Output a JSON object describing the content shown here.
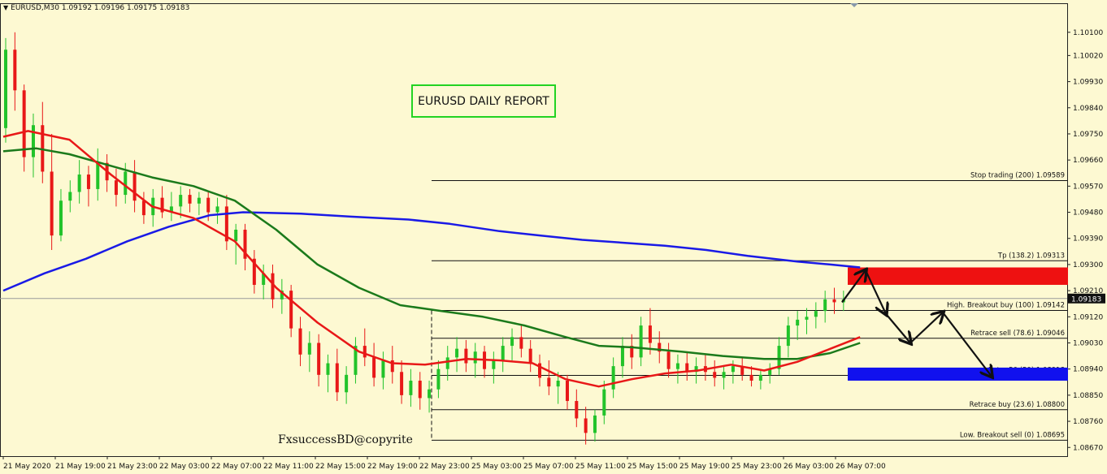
{
  "header": {
    "symbol_info": "EURUSD,M30  1.09192 1.09196 1.09175 1.09183"
  },
  "title_box": "EURUSD DAILY REPORT",
  "watermark": "FxsuccessBD@copyrite",
  "colors": {
    "background": "#fdf9d2",
    "bull_candle": "#22c32a",
    "bear_candle": "#e81818",
    "ma_red": "#e81818",
    "ma_green": "#1b7a1b",
    "ma_blue": "#1a1ae6",
    "zone_red": "#ee1111",
    "zone_blue": "#1111ee",
    "price_tag": "#111111"
  },
  "chart_data": {
    "type": "candlestick",
    "ylim": [
      1.0864,
      1.102
    ],
    "xlim": [
      0,
      1022
    ],
    "y_tick_labels": [
      "1.10100",
      "1.10020",
      "1.09930",
      "1.09840",
      "1.09750",
      "1.09660",
      "1.09570",
      "1.09480",
      "1.09390",
      "1.09300",
      "1.09210",
      "1.09120",
      "1.09030",
      "1.08940",
      "1.08850",
      "1.08760",
      "1.08670"
    ],
    "x_tick_labels": [
      "21 May 2020",
      "21 May 19:00",
      "21 May 23:00",
      "22 May 03:00",
      "22 May 07:00",
      "22 May 11:00",
      "22 May 15:00",
      "22 May 19:00",
      "22 May 23:00",
      "25 May 03:00",
      "25 May 07:00",
      "25 May 11:00",
      "25 May 15:00",
      "25 May 19:00",
      "25 May 23:00",
      "26 May 03:00",
      "26 May 07:00"
    ],
    "current_price": "1.09183",
    "fib_levels": [
      {
        "label": "Stop trading (200)",
        "value": "1.09589"
      },
      {
        "label": "Tp (138.2)",
        "value": "1.09313"
      },
      {
        "label": "High. Breakout buy (100)",
        "value": "1.09142"
      },
      {
        "label": "Retrace sell (78.6)",
        "value": "1.09046"
      },
      {
        "label": "Entry 50 (50)",
        "value": "1.08918"
      },
      {
        "label": "Retrace buy (23.6)",
        "value": "1.08800"
      },
      {
        "label": "Low. Breakout sell (0)",
        "value": "1.08695"
      }
    ],
    "zones": [
      {
        "name": "sell-zone",
        "color": "red",
        "from": 1.0923,
        "to": 1.0929
      },
      {
        "name": "buy-zone",
        "color": "blue",
        "from": 1.089,
        "to": 1.08945
      }
    ],
    "forecast_path": [
      [
        1036,
        1.0917
      ],
      [
        1065,
        1.0928
      ],
      [
        1090,
        1.0913
      ],
      [
        1120,
        1.0903
      ],
      [
        1160,
        1.09135
      ],
      [
        1220,
        1.08915
      ]
    ],
    "ma_red": [
      [
        0,
        1.0974
      ],
      [
        30,
        1.0976
      ],
      [
        80,
        1.0973
      ],
      [
        130,
        1.0961
      ],
      [
        180,
        1.095
      ],
      [
        230,
        1.0946
      ],
      [
        280,
        1.0938
      ],
      [
        330,
        1.0922
      ],
      [
        380,
        1.091
      ],
      [
        430,
        1.09
      ],
      [
        470,
        1.0896
      ],
      [
        510,
        1.08955
      ],
      [
        560,
        1.08975
      ],
      [
        600,
        1.0897
      ],
      [
        640,
        1.0896
      ],
      [
        680,
        1.08905
      ],
      [
        720,
        1.0888
      ],
      [
        760,
        1.08905
      ],
      [
        800,
        1.08925
      ],
      [
        840,
        1.08935
      ],
      [
        880,
        1.08955
      ],
      [
        920,
        1.08935
      ],
      [
        960,
        1.08965
      ],
      [
        1000,
        1.0901
      ],
      [
        1036,
        1.0905
      ]
    ],
    "ma_green": [
      [
        0,
        1.0969
      ],
      [
        40,
        1.097
      ],
      [
        80,
        1.0968
      ],
      [
        130,
        1.0964
      ],
      [
        180,
        1.096
      ],
      [
        230,
        1.0957
      ],
      [
        280,
        1.0952
      ],
      [
        330,
        1.0942
      ],
      [
        380,
        1.093
      ],
      [
        430,
        1.0922
      ],
      [
        480,
        1.0916
      ],
      [
        530,
        1.0914
      ],
      [
        580,
        1.0912
      ],
      [
        630,
        1.0909
      ],
      [
        680,
        1.0905
      ],
      [
        720,
        1.0902
      ],
      [
        760,
        1.09015
      ],
      [
        820,
        1.09
      ],
      [
        870,
        1.08985
      ],
      [
        920,
        1.08975
      ],
      [
        960,
        1.08975
      ],
      [
        1000,
        1.08995
      ],
      [
        1036,
        1.0903
      ]
    ],
    "ma_blue": [
      [
        0,
        1.0921
      ],
      [
        50,
        1.0927
      ],
      [
        100,
        1.0932
      ],
      [
        150,
        1.0938
      ],
      [
        200,
        1.0943
      ],
      [
        250,
        1.0947
      ],
      [
        290,
        1.0948
      ],
      [
        360,
        1.09475
      ],
      [
        420,
        1.09465
      ],
      [
        490,
        1.09455
      ],
      [
        540,
        1.0944
      ],
      [
        600,
        1.09415
      ],
      [
        650,
        1.094
      ],
      [
        700,
        1.09385
      ],
      [
        750,
        1.09375
      ],
      [
        800,
        1.09365
      ],
      [
        850,
        1.0935
      ],
      [
        900,
        1.0933
      ],
      [
        960,
        1.0931
      ],
      [
        1000,
        1.093
      ],
      [
        1036,
        1.0929
      ]
    ],
    "candles": [
      [
        1.0977,
        1.1008,
        1.0972,
        1.1004
      ],
      [
        1.1004,
        1.101,
        1.0983,
        1.099
      ],
      [
        1.099,
        1.0992,
        1.0962,
        1.0967
      ],
      [
        1.0967,
        1.0982,
        1.096,
        1.0978
      ],
      [
        1.0978,
        1.0986,
        1.0958,
        1.0962
      ],
      [
        1.0962,
        1.0975,
        1.0935,
        1.094
      ],
      [
        1.094,
        1.0956,
        1.0938,
        1.0952
      ],
      [
        1.0952,
        1.0959,
        1.0948,
        1.0955
      ],
      [
        1.0955,
        1.0966,
        1.0951,
        1.0961
      ],
      [
        1.0961,
        1.0964,
        1.095,
        1.0956
      ],
      [
        1.0956,
        1.097,
        1.0952,
        1.0965
      ],
      [
        1.0965,
        1.0968,
        1.0955,
        1.0959
      ],
      [
        1.0959,
        1.0963,
        1.095,
        1.0954
      ],
      [
        1.0954,
        1.0965,
        1.0951,
        1.0962
      ],
      [
        1.0962,
        1.0966,
        1.0948,
        1.0952
      ],
      [
        1.0952,
        1.0955,
        1.0944,
        1.0947
      ],
      [
        1.0947,
        1.0956,
        1.0943,
        1.0953
      ],
      [
        1.0953,
        1.0957,
        1.0946,
        1.0948
      ],
      [
        1.0948,
        1.0955,
        1.0945,
        1.095
      ],
      [
        1.095,
        1.0957,
        1.0946,
        1.0954
      ],
      [
        1.0954,
        1.0956,
        1.0948,
        1.0951
      ],
      [
        1.0951,
        1.0955,
        1.0947,
        1.0953
      ],
      [
        1.0953,
        1.0955,
        1.0945,
        1.0948
      ],
      [
        1.0948,
        1.0953,
        1.0944,
        1.095
      ],
      [
        1.095,
        1.0954,
        1.0935,
        1.0938
      ],
      [
        1.0938,
        1.0944,
        1.093,
        1.0942
      ],
      [
        1.0942,
        1.0944,
        1.0928,
        1.0932
      ],
      [
        1.0932,
        1.0935,
        1.092,
        1.0923
      ],
      [
        1.0923,
        1.093,
        1.0918,
        1.0927
      ],
      [
        1.0927,
        1.093,
        1.0915,
        1.0918
      ],
      [
        1.0918,
        1.0925,
        1.0913,
        1.0921
      ],
      [
        1.0921,
        1.0923,
        1.0905,
        1.0908
      ],
      [
        1.0908,
        1.0912,
        1.0895,
        1.0899
      ],
      [
        1.0899,
        1.0907,
        1.0893,
        1.0903
      ],
      [
        1.0903,
        1.0906,
        1.0888,
        1.0892
      ],
      [
        1.0892,
        1.0899,
        1.0886,
        1.0896
      ],
      [
        1.0896,
        1.0901,
        1.0883,
        1.0886
      ],
      [
        1.0886,
        1.0895,
        1.0882,
        1.0892
      ],
      [
        1.0892,
        1.0905,
        1.0889,
        1.0902
      ],
      [
        1.0902,
        1.0908,
        1.0895,
        1.0898
      ],
      [
        1.0898,
        1.0903,
        1.0888,
        1.0891
      ],
      [
        1.0891,
        1.09,
        1.0887,
        1.0897
      ],
      [
        1.0897,
        1.0902,
        1.0889,
        1.0893
      ],
      [
        1.0893,
        1.0897,
        1.0882,
        1.0885
      ],
      [
        1.0885,
        1.0894,
        1.0881,
        1.089
      ],
      [
        1.089,
        1.0893,
        1.088,
        1.0884
      ],
      [
        1.0884,
        1.089,
        1.0879,
        1.0887
      ],
      [
        1.0887,
        1.0897,
        1.0884,
        1.0894
      ],
      [
        1.0894,
        1.0902,
        1.089,
        1.0898
      ],
      [
        1.0898,
        1.0905,
        1.0893,
        1.0901
      ],
      [
        1.0901,
        1.0904,
        1.0893,
        1.0896
      ],
      [
        1.0896,
        1.0903,
        1.0891,
        1.09
      ],
      [
        1.09,
        1.0902,
        1.0891,
        1.0894
      ],
      [
        1.0894,
        1.09,
        1.0889,
        1.0897
      ],
      [
        1.0897,
        1.0905,
        1.0893,
        1.0902
      ],
      [
        1.0902,
        1.0908,
        1.0897,
        1.0905
      ],
      [
        1.0905,
        1.0909,
        1.0898,
        1.0901
      ],
      [
        1.0901,
        1.0904,
        1.0893,
        1.0896
      ],
      [
        1.0896,
        1.0899,
        1.0888,
        1.0891
      ],
      [
        1.0891,
        1.0897,
        1.0885,
        1.0888
      ],
      [
        1.0888,
        1.0893,
        1.0882,
        1.089
      ],
      [
        1.089,
        1.0892,
        1.088,
        1.0883
      ],
      [
        1.0883,
        1.0887,
        1.0874,
        1.0877
      ],
      [
        1.0877,
        1.0881,
        1.0868,
        1.0872
      ],
      [
        1.0872,
        1.088,
        1.0869,
        1.0878
      ],
      [
        1.0878,
        1.089,
        1.0875,
        1.0887
      ],
      [
        1.0887,
        1.0898,
        1.0884,
        1.0895
      ],
      [
        1.0895,
        1.0905,
        1.0891,
        1.0902
      ],
      [
        1.0902,
        1.0906,
        1.0894,
        1.0898
      ],
      [
        1.0898,
        1.0912,
        1.0895,
        1.0909
      ],
      [
        1.0909,
        1.0915,
        1.0899,
        1.0903
      ],
      [
        1.0903,
        1.0907,
        1.0896,
        1.09
      ],
      [
        1.09,
        1.0903,
        1.0891,
        1.0894
      ],
      [
        1.0894,
        1.0899,
        1.0889,
        1.0896
      ],
      [
        1.0896,
        1.09,
        1.089,
        1.0893
      ],
      [
        1.0893,
        1.0898,
        1.0889,
        1.0895
      ],
      [
        1.0895,
        1.0899,
        1.089,
        1.0893
      ],
      [
        1.0893,
        1.0897,
        1.0888,
        1.0891
      ],
      [
        1.0891,
        1.0895,
        1.0887,
        1.0893
      ],
      [
        1.0893,
        1.0897,
        1.0889,
        1.0895
      ],
      [
        1.0895,
        1.0898,
        1.089,
        1.0892
      ],
      [
        1.0892,
        1.0895,
        1.0888,
        1.089
      ],
      [
        1.089,
        1.0894,
        1.0887,
        1.0892
      ],
      [
        1.0892,
        1.0896,
        1.0889,
        1.0894
      ],
      [
        1.0894,
        1.0905,
        1.0892,
        1.0902
      ],
      [
        1.0902,
        1.0912,
        1.0898,
        1.0909
      ],
      [
        1.0909,
        1.0914,
        1.0904,
        1.0911
      ],
      [
        1.0911,
        1.0915,
        1.0906,
        1.0912
      ],
      [
        1.0912,
        1.0917,
        1.0908,
        1.0914
      ],
      [
        1.0914,
        1.0921,
        1.091,
        1.0918
      ],
      [
        1.0918,
        1.0922,
        1.0913,
        1.0917
      ],
      [
        1.0917,
        1.0921,
        1.0914,
        1.0918
      ]
    ]
  }
}
